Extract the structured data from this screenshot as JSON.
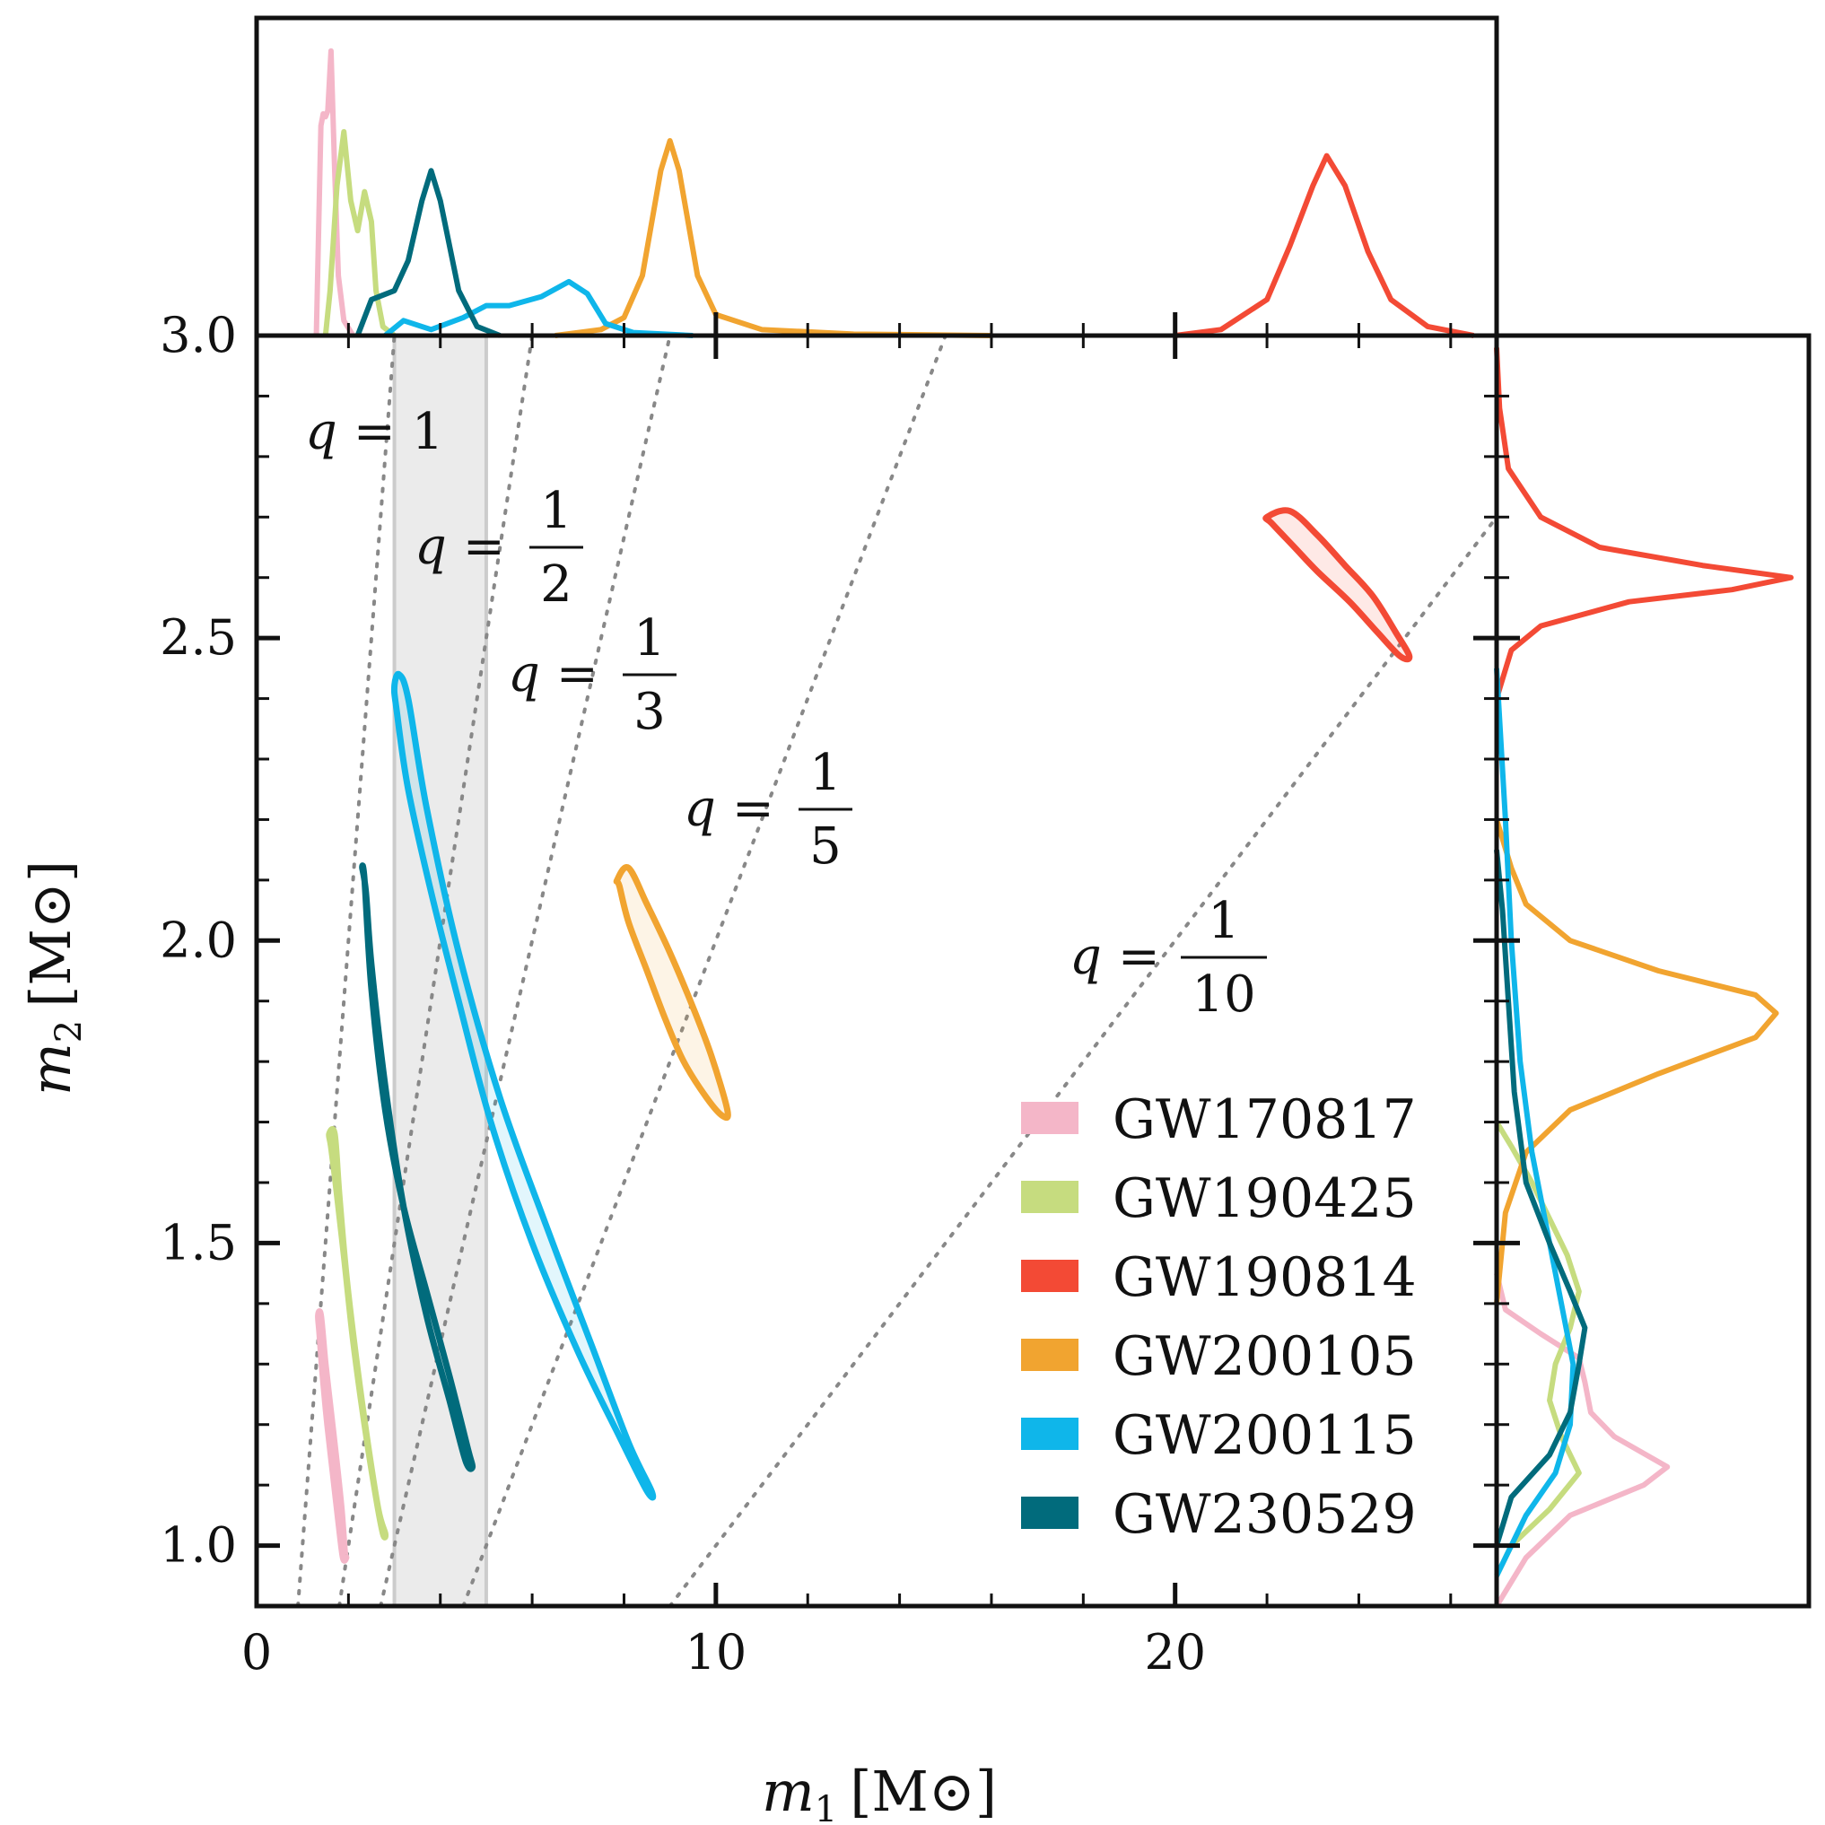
{
  "colors": {
    "GW170817": "#f4b6c8",
    "GW190425": "#c6dc7f",
    "GW190814": "#f34a35",
    "GW200105": "#f1a430",
    "GW200115": "#0fb6ea",
    "GW230529": "#016b7c",
    "band": "#dddddd",
    "ratio_line": "#888888",
    "axes": "#111111"
  },
  "chart_data": {
    "type": "scatter",
    "title": "",
    "xlabel": {
      "var": "m",
      "sub": "1",
      "unit": "[M⊙]"
    },
    "ylabel": {
      "var": "m",
      "sub": "2",
      "unit": "[M⊙]"
    },
    "xlim": [
      0,
      27
    ],
    "ylim": [
      0.9,
      3.0
    ],
    "x_ticks": [
      "0",
      "10",
      "20"
    ],
    "x_tick_values": [
      0,
      10,
      20
    ],
    "y_ticks": [
      "1.0",
      "1.5",
      "2.0",
      "2.5",
      "3.0"
    ],
    "y_tick_values": [
      1.0,
      1.5,
      2.0,
      2.5,
      3.0
    ],
    "shaded_band_m1": [
      3.0,
      5.0
    ],
    "mass_ratio_lines": [
      {
        "q": 1,
        "label_num": "1",
        "label_den": ""
      },
      {
        "q": 0.5,
        "label_num": "1",
        "label_den": "2"
      },
      {
        "q": 0.3333,
        "label_num": "1",
        "label_den": "3"
      },
      {
        "q": 0.2,
        "label_num": "1",
        "label_den": "5"
      },
      {
        "q": 0.1,
        "label_num": "1",
        "label_den": "10"
      }
    ],
    "q_prefix": "q",
    "q_equals": "=",
    "series": [
      {
        "name": "GW170817",
        "m1_range": [
          1.36,
          1.89
        ],
        "m2_range": [
          0.98,
          1.38
        ],
        "contour_m1": [
          1.34,
          1.4,
          1.5,
          1.62,
          1.74,
          1.85,
          1.92,
          1.95,
          1.88,
          1.78,
          1.66,
          1.54,
          1.44,
          1.37
        ],
        "contour_m2": [
          1.38,
          1.38,
          1.3,
          1.22,
          1.14,
          1.06,
          0.99,
          0.98,
          0.98,
          1.04,
          1.12,
          1.2,
          1.28,
          1.35
        ],
        "m1_marginal": {
          "x": [
            1.3,
            1.4,
            1.45,
            1.5,
            1.55,
            1.62,
            1.7,
            1.78,
            1.9,
            2.1
          ],
          "y": [
            0,
            0.7,
            0.74,
            0.73,
            0.75,
            0.95,
            0.55,
            0.2,
            0.05,
            0
          ]
        },
        "m2_marginal": {
          "y": [
            0.9,
            0.98,
            1.05,
            1.1,
            1.13,
            1.18,
            1.22,
            1.27,
            1.31,
            1.35,
            1.39,
            1.45
          ],
          "x": [
            0,
            0.1,
            0.25,
            0.5,
            0.58,
            0.4,
            0.32,
            0.3,
            0.28,
            0.15,
            0.03,
            0
          ]
        }
      },
      {
        "name": "GW190425",
        "m1_range": [
          1.6,
          2.8
        ],
        "m2_range": [
          1.02,
          1.68
        ],
        "contour_m1": [
          1.58,
          1.7,
          1.8,
          1.95,
          2.15,
          2.4,
          2.65,
          2.8,
          2.75,
          2.6,
          2.35,
          2.1,
          1.9,
          1.72,
          1.62
        ],
        "contour_m2": [
          1.68,
          1.68,
          1.58,
          1.45,
          1.32,
          1.18,
          1.06,
          1.02,
          1.02,
          1.08,
          1.2,
          1.34,
          1.48,
          1.6,
          1.66
        ],
        "m1_marginal": {
          "x": [
            1.5,
            1.6,
            1.75,
            1.9,
            2.05,
            2.2,
            2.35,
            2.5,
            2.6,
            2.75,
            3.0
          ],
          "y": [
            0,
            0.15,
            0.5,
            0.68,
            0.45,
            0.35,
            0.48,
            0.38,
            0.15,
            0.03,
            0
          ]
        },
        "m2_marginal": {
          "y": [
            0.95,
            1.0,
            1.06,
            1.12,
            1.18,
            1.24,
            1.3,
            1.36,
            1.42,
            1.48,
            1.54,
            1.6,
            1.66,
            1.7
          ],
          "x": [
            0,
            0.05,
            0.18,
            0.28,
            0.22,
            0.18,
            0.2,
            0.25,
            0.28,
            0.24,
            0.18,
            0.12,
            0.05,
            0
          ]
        }
      },
      {
        "name": "GW190814",
        "m1_range": [
          22.2,
          25.0
        ],
        "m2_range": [
          2.47,
          2.71
        ],
        "contour_m1": [
          22.0,
          22.5,
          23.1,
          23.7,
          24.3,
          24.8,
          25.1,
          24.9,
          24.4,
          23.8,
          23.1,
          22.6,
          22.1
        ],
        "contour_m2": [
          2.7,
          2.71,
          2.67,
          2.62,
          2.57,
          2.51,
          2.47,
          2.47,
          2.51,
          2.56,
          2.61,
          2.65,
          2.69
        ],
        "m1_marginal": {
          "x": [
            20.0,
            21.0,
            22.0,
            22.5,
            23.0,
            23.3,
            23.7,
            24.2,
            24.7,
            25.5,
            26.5
          ],
          "y": [
            0,
            0.02,
            0.12,
            0.3,
            0.5,
            0.6,
            0.5,
            0.28,
            0.12,
            0.03,
            0
          ]
        },
        "m2_marginal": {
          "y": [
            2.4,
            2.48,
            2.52,
            2.56,
            2.58,
            2.6,
            2.62,
            2.65,
            2.7,
            2.78,
            2.88,
            2.98
          ],
          "x": [
            0,
            0.05,
            0.15,
            0.45,
            0.8,
            1.0,
            0.7,
            0.35,
            0.15,
            0.04,
            0.01,
            0
          ]
        }
      },
      {
        "name": "GW200105",
        "m1_range": [
          7.9,
          10.2
        ],
        "m2_range": [
          1.72,
          2.12
        ],
        "contour_m1": [
          7.85,
          8.1,
          8.5,
          9.0,
          9.5,
          9.9,
          10.25,
          10.15,
          9.8,
          9.3,
          8.9,
          8.5,
          8.1,
          7.9
        ],
        "contour_m2": [
          2.1,
          2.12,
          2.06,
          1.98,
          1.89,
          1.81,
          1.72,
          1.71,
          1.74,
          1.8,
          1.87,
          1.95,
          2.03,
          2.09
        ],
        "m1_marginal": {
          "x": [
            6.5,
            7.5,
            8.0,
            8.4,
            8.8,
            9.0,
            9.2,
            9.6,
            10.0,
            11.0,
            13.0,
            16.0
          ],
          "y": [
            0,
            0.02,
            0.06,
            0.2,
            0.55,
            0.65,
            0.55,
            0.2,
            0.07,
            0.02,
            0.005,
            0
          ]
        },
        "m2_marginal": {
          "y": [
            1.4,
            1.55,
            1.65,
            1.72,
            1.78,
            1.84,
            1.88,
            1.91,
            1.95,
            2.0,
            2.06,
            2.12,
            2.2
          ],
          "x": [
            0,
            0.03,
            0.1,
            0.25,
            0.55,
            0.88,
            0.95,
            0.88,
            0.55,
            0.25,
            0.1,
            0.05,
            0
          ]
        }
      },
      {
        "name": "GW200115",
        "m1_range": [
          3.0,
          8.7
        ],
        "m2_range": [
          1.09,
          2.44
        ],
        "contour_m1": [
          3.0,
          3.1,
          3.3,
          3.7,
          4.4,
          5.3,
          6.3,
          7.3,
          8.1,
          8.6,
          8.5,
          7.9,
          7.0,
          6.0,
          5.1,
          4.4,
          3.8,
          3.3,
          3.05
        ],
        "contour_m2": [
          2.42,
          2.44,
          2.4,
          2.22,
          1.98,
          1.74,
          1.53,
          1.33,
          1.17,
          1.09,
          1.09,
          1.18,
          1.32,
          1.5,
          1.7,
          1.9,
          2.08,
          2.25,
          2.38
        ],
        "m1_marginal": {
          "x": [
            2.8,
            3.2,
            3.8,
            4.5,
            5.0,
            5.5,
            6.2,
            6.8,
            7.2,
            7.6,
            8.2,
            9.5
          ],
          "y": [
            0,
            0.05,
            0.02,
            0.06,
            0.1,
            0.1,
            0.13,
            0.18,
            0.14,
            0.04,
            0.01,
            0
          ]
        },
        "m2_marginal": {
          "y": [
            0.95,
            1.05,
            1.12,
            1.2,
            1.3,
            1.4,
            1.5,
            1.65,
            1.8,
            2.0,
            2.2,
            2.45
          ],
          "x": [
            0,
            0.1,
            0.2,
            0.25,
            0.26,
            0.22,
            0.18,
            0.12,
            0.08,
            0.05,
            0.03,
            0
          ]
        }
      },
      {
        "name": "GW230529",
        "m1_range": [
          2.3,
          4.7
        ],
        "m2_range": [
          1.13,
          2.12
        ],
        "contour_m1": [
          2.3,
          2.35,
          2.5,
          2.8,
          3.2,
          3.7,
          4.2,
          4.6,
          4.7,
          4.55,
          4.2,
          3.7,
          3.2,
          2.8,
          2.5,
          2.38
        ],
        "contour_m2": [
          2.12,
          2.1,
          1.92,
          1.72,
          1.56,
          1.42,
          1.28,
          1.16,
          1.13,
          1.14,
          1.24,
          1.38,
          1.56,
          1.76,
          1.96,
          2.08
        ],
        "m1_marginal": {
          "x": [
            2.2,
            2.5,
            3.0,
            3.3,
            3.6,
            3.8,
            4.0,
            4.4,
            4.8,
            5.3
          ],
          "y": [
            0,
            0.12,
            0.15,
            0.25,
            0.45,
            0.55,
            0.45,
            0.15,
            0.03,
            0
          ]
        },
        "m2_marginal": {
          "y": [
            1.0,
            1.08,
            1.15,
            1.22,
            1.3,
            1.36,
            1.42,
            1.5,
            1.6,
            1.75,
            1.9,
            2.05,
            2.15
          ],
          "x": [
            0,
            0.05,
            0.18,
            0.25,
            0.28,
            0.3,
            0.25,
            0.18,
            0.1,
            0.06,
            0.04,
            0.02,
            0
          ]
        }
      }
    ]
  }
}
